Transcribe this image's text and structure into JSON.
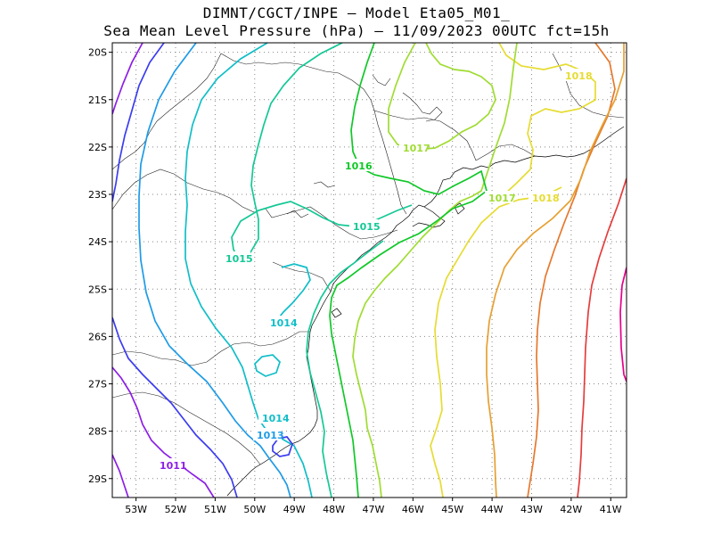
{
  "title": {
    "line1": "DIMNT/CGCT/INPE –  Model Eta05_M01_",
    "line2": "Sea Mean Level Pressure (hPa) – 11/09/2023 00UTC fct=15h"
  },
  "axes": {
    "lat_labels": [
      "20S",
      "21S",
      "22S",
      "23S",
      "24S",
      "25S",
      "26S",
      "27S",
      "28S",
      "29S"
    ],
    "lon_labels": [
      "53W",
      "52W",
      "51W",
      "50W",
      "49W",
      "48W",
      "47W",
      "46W",
      "45W",
      "44W",
      "43W",
      "42W",
      "41W"
    ]
  },
  "chart_data": {
    "type": "contour",
    "variable": "Sea Mean Level Pressure (hPa)",
    "x_range": [
      "53.6W",
      "40.6W"
    ],
    "y_range": [
      "29.4S",
      "19.8S"
    ],
    "grid": true,
    "levels": [
      {
        "value": "1011",
        "color": "#8c1ee6"
      },
      {
        "value": "1012",
        "color": "#3c3cf0"
      },
      {
        "value": "1013",
        "color": "#1e9be6"
      },
      {
        "value": "1014",
        "color": "#10bec8"
      },
      {
        "value": "1015",
        "color": "#14c896"
      },
      {
        "value": "1016",
        "color": "#10c828"
      },
      {
        "value": "1017",
        "color": "#a0dc32"
      },
      {
        "value": "1018",
        "color": "#e6dc32"
      },
      {
        "value": "1019",
        "color": "#e6a032"
      },
      {
        "value": "1020",
        "color": "#e6782d"
      },
      {
        "value": "1021",
        "color": "#e63c3c"
      },
      {
        "value": "1022",
        "color": "#e6008c"
      }
    ],
    "contour_labels": [
      {
        "text": "1018",
        "level": "1018"
      },
      {
        "text": "1017",
        "level": "1017"
      },
      {
        "text": "1016",
        "level": "1016"
      },
      {
        "text": "1017",
        "level": "1017"
      },
      {
        "text": "1018",
        "level": "1018"
      },
      {
        "text": "1015",
        "level": "1015"
      },
      {
        "text": "1015",
        "level": "1015"
      },
      {
        "text": "1014",
        "level": "1014"
      },
      {
        "text": "1014",
        "level": "1014"
      },
      {
        "text": "1013",
        "level": "1013"
      },
      {
        "text": "1011",
        "level": "1011"
      }
    ]
  }
}
